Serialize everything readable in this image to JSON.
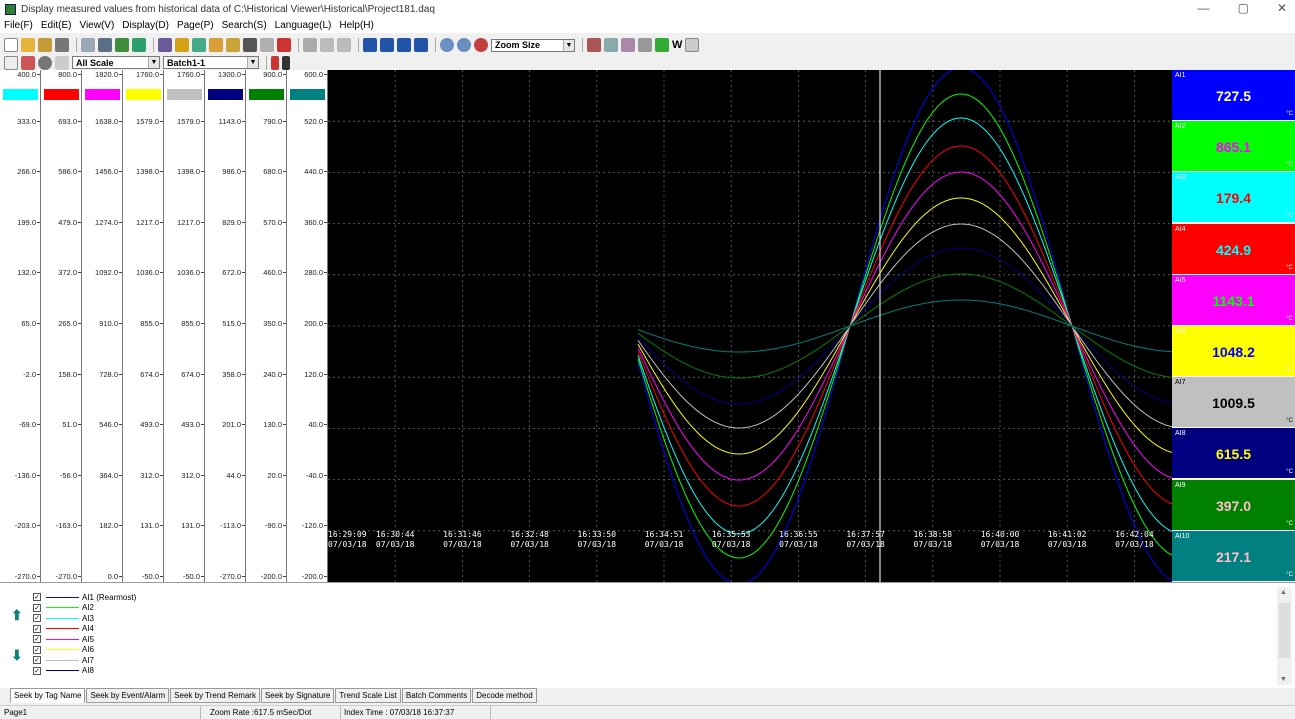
{
  "window": {
    "title": "Display measured values from historical data of C:\\Historical Viewer\\Historical\\Project181.daq",
    "minimize": "—",
    "maximize": "▢",
    "close": "✕"
  },
  "menu": [
    {
      "label": "File(F)"
    },
    {
      "label": "Edit(E)"
    },
    {
      "label": "View(V)"
    },
    {
      "label": "Display(D)"
    },
    {
      "label": "Page(P)"
    },
    {
      "label": "Search(S)"
    },
    {
      "label": "Language(L)"
    },
    {
      "label": "Help(H)"
    }
  ],
  "toolbar": {
    "zoom_select": "Zoom Size",
    "w_label": "W",
    "scale_select": "All Scale",
    "batch_select": "Batch1-1",
    "arrow_glyph": "▼"
  },
  "scale_columns": [
    {
      "color": "#00ffff",
      "ticks": [
        "400.0",
        "333.0",
        "266.0",
        "199.0",
        "132.0",
        "65.0",
        "-2.0",
        "-69.0",
        "-136.0",
        "-203.0",
        "-270.0"
      ]
    },
    {
      "color": "#ff0000",
      "ticks": [
        "800.0",
        "693.0",
        "586.0",
        "479.0",
        "372.0",
        "265.0",
        "158.0",
        "51.0",
        "-56.0",
        "-163.0",
        "-270.0"
      ]
    },
    {
      "color": "#ff00ff",
      "ticks": [
        "1820.0",
        "1638.0",
        "1456.0",
        "1274.0",
        "1092.0",
        "910.0",
        "728.0",
        "546.0",
        "364.0",
        "182.0",
        "0.0"
      ]
    },
    {
      "color": "#ffff00",
      "ticks": [
        "1760.0",
        "1579.0",
        "1398.0",
        "1217.0",
        "1036.0",
        "855.0",
        "674.0",
        "493.0",
        "312.0",
        "131.0",
        "-50.0"
      ]
    },
    {
      "color": "#c0c0c0",
      "ticks": [
        "1760.0",
        "1579.0",
        "1398.0",
        "1217.0",
        "1036.0",
        "855.0",
        "674.0",
        "493.0",
        "312.0",
        "131.0",
        "-50.0"
      ]
    },
    {
      "color": "#000080",
      "ticks": [
        "1300.0",
        "1143.0",
        "986.0",
        "829.0",
        "672.0",
        "515.0",
        "358.0",
        "201.0",
        "44.0",
        "-113.0",
        "-270.0"
      ]
    },
    {
      "color": "#008000",
      "ticks": [
        "900.0",
        "790.0",
        "680.0",
        "570.0",
        "460.0",
        "350.0",
        "240.0",
        "130.0",
        "20.0",
        "-90.0",
        "-200.0"
      ]
    },
    {
      "color": "#008080",
      "ticks": [
        "600.0",
        "520.0",
        "440.0",
        "360.0",
        "280.0",
        "200.0",
        "120.0",
        "40.0",
        "-40.0",
        "-120.0",
        "-200.0"
      ]
    }
  ],
  "chart_data": {
    "type": "line",
    "x_labels": [
      {
        "time": "16:29:09",
        "date": "07/03/18"
      },
      {
        "time": "16:30:44",
        "date": "07/03/18"
      },
      {
        "time": "16:31:46",
        "date": "07/03/18"
      },
      {
        "time": "16:32:48",
        "date": "07/03/18"
      },
      {
        "time": "16:33:50",
        "date": "07/03/18"
      },
      {
        "time": "16:34:51",
        "date": "07/03/18"
      },
      {
        "time": "16:35:53",
        "date": "07/03/18"
      },
      {
        "time": "16:36:55",
        "date": "07/03/18"
      },
      {
        "time": "16:37:57",
        "date": "07/03/18"
      },
      {
        "time": "16:38:58",
        "date": "07/03/18"
      },
      {
        "time": "16:40:00",
        "date": "07/03/18"
      },
      {
        "time": "16:41:02",
        "date": "07/03/18"
      },
      {
        "time": "16:42:04",
        "date": "07/03/18"
      }
    ],
    "grid": true,
    "cursor_time": "16:37:37",
    "series": [
      {
        "name": "AI1",
        "color": "#0000ff",
        "scale_index": 0
      },
      {
        "name": "AI2",
        "color": "#00ff00",
        "scale_index": 1
      },
      {
        "name": "AI3",
        "color": "#00ffff",
        "scale_index": 2
      },
      {
        "name": "AI4",
        "color": "#ff0000",
        "scale_index": 3
      },
      {
        "name": "AI5",
        "color": "#ff00ff",
        "scale_index": 4
      },
      {
        "name": "AI6",
        "color": "#ffff00",
        "scale_index": 5
      },
      {
        "name": "AI7",
        "color": "#c0c0c0",
        "scale_index": 6
      },
      {
        "name": "AI8",
        "color": "#000080",
        "scale_index": 7
      },
      {
        "name": "AI9",
        "color": "#008000",
        "scale_index": 0
      },
      {
        "name": "AI10",
        "color": "#008080",
        "scale_index": 1
      }
    ]
  },
  "values": [
    {
      "tag": "AI1",
      "value": "727.5",
      "bg": "#0000ff",
      "fg": "#ffffff",
      "unit": "°C"
    },
    {
      "tag": "AI2",
      "value": "865.1",
      "bg": "#00ff00",
      "fg": "#ff00ff",
      "unit": "°C"
    },
    {
      "tag": "AI3",
      "value": "179.4",
      "bg": "#00ffff",
      "fg": "#ff0000",
      "unit": "°C"
    },
    {
      "tag": "AI4",
      "value": "424.9",
      "bg": "#ff0000",
      "fg": "#00ffff",
      "unit": "°C"
    },
    {
      "tag": "AI5",
      "value": "1143.1",
      "bg": "#ff00ff",
      "fg": "#00ff00",
      "unit": "°C"
    },
    {
      "tag": "AI6",
      "value": "1048.2",
      "bg": "#ffff00",
      "fg": "#0000ff",
      "unit": "°C"
    },
    {
      "tag": "AI7",
      "value": "1009.5",
      "bg": "#c0c0c0",
      "fg": "#000000",
      "unit": "°C"
    },
    {
      "tag": "AI8",
      "value": "615.5",
      "bg": "#000080",
      "fg": "#ffff00",
      "unit": "°C"
    },
    {
      "tag": "AI9",
      "value": "397.0",
      "bg": "#008000",
      "fg": "#ffc0cb",
      "unit": "°C"
    },
    {
      "tag": "AI10",
      "value": "217.1",
      "bg": "#008080",
      "fg": "#ffc0cb",
      "unit": "°C"
    }
  ],
  "tag_list": [
    {
      "label": "AI1 (Rearmost)",
      "color": "#0000ff"
    },
    {
      "label": "AI2",
      "color": "#00ff00"
    },
    {
      "label": "AI3",
      "color": "#00ffff"
    },
    {
      "label": "AI4",
      "color": "#ff0000"
    },
    {
      "label": "AI5",
      "color": "#ff00ff"
    },
    {
      "label": "AI6",
      "color": "#ffff00"
    },
    {
      "label": "AI7",
      "color": "#c0c0c0"
    },
    {
      "label": "AI8",
      "color": "#000080"
    }
  ],
  "checkmark": "✓",
  "arrows": {
    "up": "⬆",
    "down": "⬇"
  },
  "tabs": [
    {
      "label": "Seek by Tag Name"
    },
    {
      "label": "Seek by Event/Alarm"
    },
    {
      "label": "Seek by Trend Remark"
    },
    {
      "label": "Seek by Signature"
    },
    {
      "label": "Trend Scale List"
    },
    {
      "label": "Batch Comments"
    },
    {
      "label": "Decode method"
    }
  ],
  "status": {
    "page": "Page1",
    "zoom_rate": "Zoom Rate :617.5 mSec/Dot",
    "index_time": "Index Time : 07/03/18 16:37:37"
  }
}
